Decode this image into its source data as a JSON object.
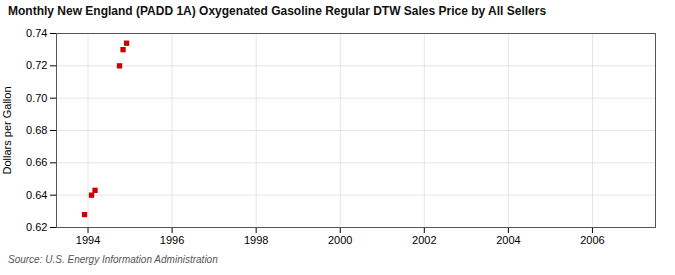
{
  "chart_data": {
    "type": "scatter",
    "title": "Monthly New England (PADD 1A) Oxygenated Gasoline Regular DTW Sales Price by All Sellers",
    "ylabel": "Dollars per Gallon",
    "annotations": [
      "Source: U.S. Energy Information Administration"
    ],
    "x": [
      1993.917,
      1994.083,
      1994.167,
      1994.75,
      1994.833,
      1994.917
    ],
    "values": [
      0.628,
      0.64,
      0.643,
      0.72,
      0.73,
      0.734
    ],
    "color": "#cc0000",
    "marker": "square",
    "xlim": [
      1993.25,
      2007.5
    ],
    "xticks": [
      1994,
      1996,
      1998,
      2000,
      2002,
      2004,
      2006
    ],
    "ylim": [
      0.62,
      0.74
    ],
    "yticks": [
      0.62,
      0.64,
      0.66,
      0.68,
      {
        "value": 0.7,
        "label": "0.70"
      },
      0.72,
      0.74
    ],
    "grid": true
  }
}
